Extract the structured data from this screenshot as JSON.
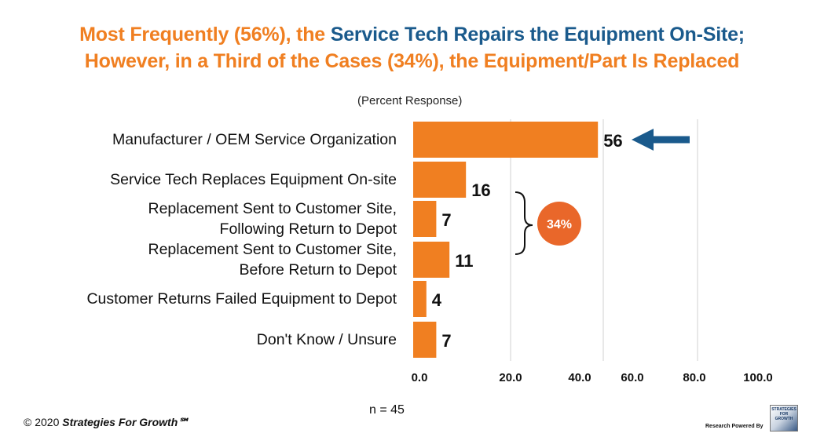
{
  "header": {
    "title_line1_part1": "Most Frequently (56%), the ",
    "title_line1_part2": "Service Tech Repairs the Equipment On-Site;",
    "title_line2": "However, in a Third of the Cases (34%), the Equipment/Part Is Replaced",
    "subtitle": "(Percent Response)"
  },
  "footer": {
    "n_label": "n = 45",
    "copyright_prefix": "© 2020 ",
    "copyright_brand": "Strategies For Growth℠",
    "powered_by": "Research Powered By",
    "logo_text": "STRATEGIES FOR GROWTH"
  },
  "annotation": {
    "bracket_label": "34%",
    "bracket_color": "#e9672a",
    "arrow_color": "#1a5a8c"
  },
  "colors": {
    "bar": "#f07f21",
    "grid": "#d9d9d9",
    "title_orange": "#f07f21",
    "title_blue": "#1a5a8c"
  },
  "chart_data": {
    "type": "bar",
    "orientation": "horizontal",
    "categories": [
      "Manufacturer / OEM Service Organization",
      "Service Tech Replaces Equipment On-site",
      "Replacement Sent to Customer Site, Following Return to Depot",
      "Replacement Sent to Customer Site, Before Return to Depot",
      "Customer Returns Failed Equipment to Depot",
      "Don't Know / Unsure"
    ],
    "category_lines": [
      [
        "Manufacturer / OEM Service Organization"
      ],
      [
        "Service Tech Replaces Equipment On-site"
      ],
      [
        "Replacement Sent to Customer Site,",
        "Following Return to Depot"
      ],
      [
        "Replacement Sent to Customer Site,",
        "Before Return to Depot"
      ],
      [
        "Customer Returns Failed Equipment to Depot"
      ],
      [
        "Don't Know / Unsure"
      ]
    ],
    "values": [
      56,
      16,
      7,
      11,
      4,
      7
    ],
    "data_labels": [
      "56",
      "16",
      "7",
      "11",
      "4",
      "7"
    ],
    "x_ticks": [
      "0.0",
      "20.0",
      "40.0",
      "60.0",
      "80.0",
      "100.0"
    ],
    "xlim": [
      0,
      100
    ],
    "grid": true,
    "title": "",
    "xlabel": "",
    "ylabel": ""
  }
}
